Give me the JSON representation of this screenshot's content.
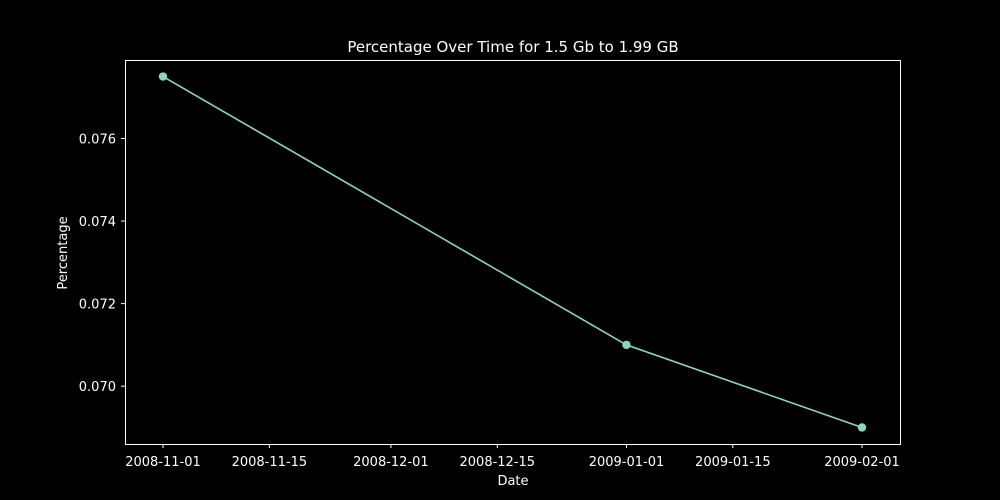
{
  "chart_data": {
    "type": "line",
    "title": "Percentage Over Time for 1.5 Gb to 1.99 GB",
    "xlabel": "Date",
    "ylabel": "Percentage",
    "x_ticks": [
      "2008-11-01",
      "2008-11-15",
      "2008-12-01",
      "2008-12-15",
      "2009-01-01",
      "2009-01-15",
      "2009-02-01"
    ],
    "y_ticks": [
      "0.070",
      "0.072",
      "0.074",
      "0.076"
    ],
    "ylim": [
      0.0686,
      0.0779
    ],
    "xlim": [
      "2008-10-27",
      "2009-02-06"
    ],
    "series": [
      {
        "x": [
          "2008-11-01",
          "2009-01-01",
          "2009-02-01"
        ],
        "y": [
          0.0775,
          0.071,
          0.069
        ],
        "color": "#8dd3c7"
      }
    ],
    "grid": false,
    "background": "#000000",
    "foreground": "#ffffff"
  }
}
